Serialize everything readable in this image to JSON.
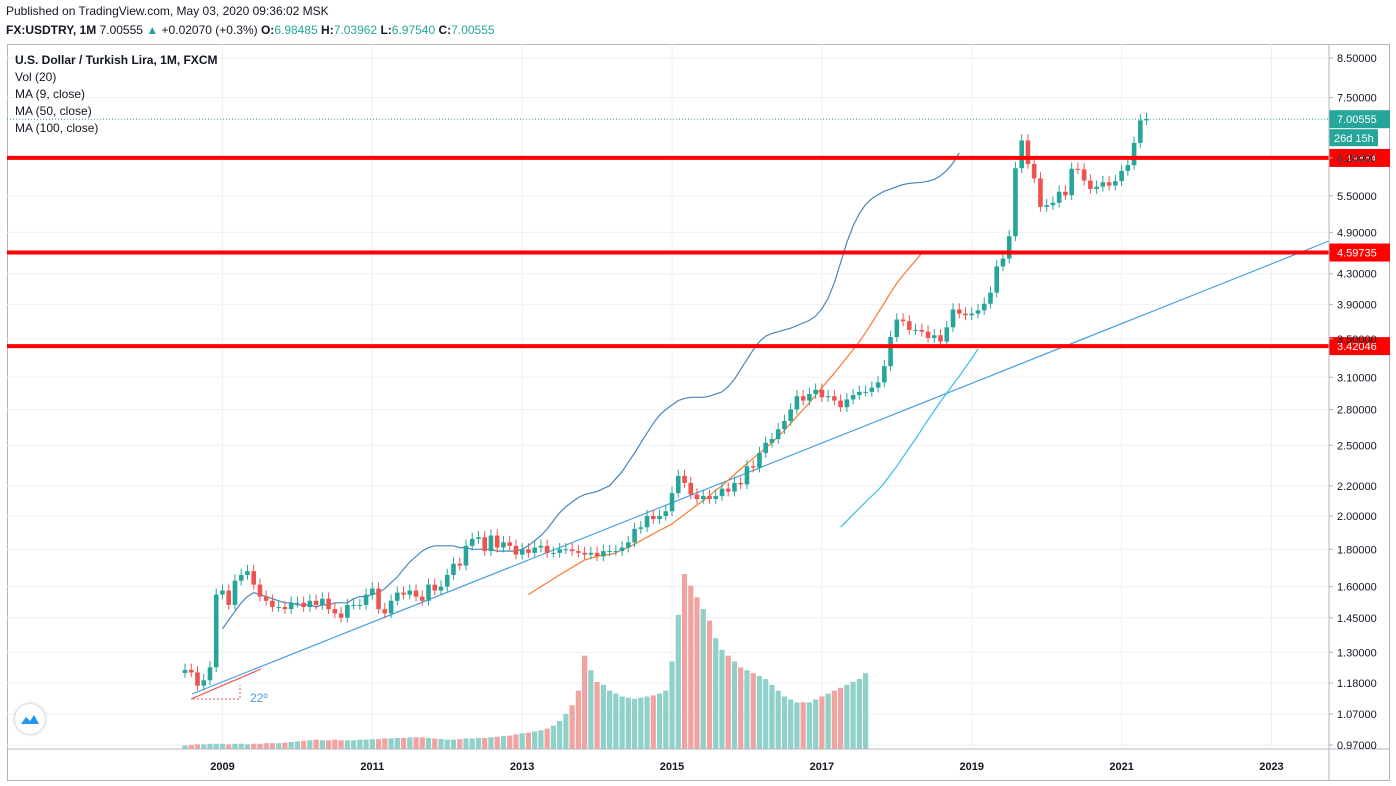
{
  "header": {
    "published": "Published on TradingView.com, May 03, 2020 09:36:02 MSK",
    "symbol": "FX:USDTRY, 1M",
    "last": "7.00555",
    "change": "+0.02070 (+0.3%)",
    "o_label": "O:",
    "o_value": "6.98485",
    "h_label": "H:",
    "h_value": "7.03962",
    "l_label": "L:",
    "l_value": "6.97540",
    "c_label": "C:",
    "c_value": "7.00555"
  },
  "legend": {
    "title": "U.S. Dollar / Turkish Lira, 1M, FXCM",
    "vol": "Vol (20)",
    "ma9": "MA (9, close)",
    "ma50": "MA (50, close)",
    "ma100": "MA (100, close)"
  },
  "annotation": "22º",
  "colors": {
    "up": "#26a69a",
    "down": "#ef5350",
    "vol_up": "#8fd0c9",
    "vol_down": "#f0a3a1",
    "ma9": "#4a86b7",
    "ma50": "#f57c2e",
    "ma100": "#35bde3",
    "trend": "#4a9fe0",
    "level": "#ff0000",
    "grid": "#eef0f3"
  },
  "chart_data": {
    "type": "candlestick",
    "x_ticks": [
      "2009",
      "2011",
      "2013",
      "2015",
      "2017",
      "2019",
      "2021",
      "2023"
    ],
    "y_ticks": [
      "0.97000",
      "1.07000",
      "1.18000",
      "1.30000",
      "1.45000",
      "1.60000",
      "1.80000",
      "2.00000",
      "2.20000",
      "2.50000",
      "2.80000",
      "3.10000",
      "3.50000",
      "3.90000",
      "4.30000",
      "4.90000",
      "5.50000",
      "6.20000",
      "7.50000",
      "8.50000"
    ],
    "y_scale": "log",
    "price_labels": [
      {
        "value": "7.00555",
        "sub": "26d 15h",
        "kind": "last"
      },
      {
        "value": "6.19864",
        "kind": "level"
      },
      {
        "value": "4.59735",
        "kind": "level"
      },
      {
        "value": "3.42046",
        "kind": "level"
      }
    ],
    "closes": [
      1.23,
      1.22,
      1.17,
      1.19,
      1.24,
      1.56,
      1.58,
      1.51,
      1.63,
      1.66,
      1.68,
      1.61,
      1.55,
      1.53,
      1.5,
      1.5,
      1.49,
      1.52,
      1.52,
      1.5,
      1.53,
      1.51,
      1.54,
      1.49,
      1.47,
      1.45,
      1.51,
      1.51,
      1.51,
      1.56,
      1.59,
      1.49,
      1.47,
      1.53,
      1.57,
      1.56,
      1.58,
      1.55,
      1.53,
      1.61,
      1.58,
      1.6,
      1.66,
      1.72,
      1.71,
      1.82,
      1.86,
      1.87,
      1.79,
      1.88,
      1.81,
      1.84,
      1.82,
      1.77,
      1.8,
      1.78,
      1.81,
      1.82,
      1.78,
      1.78,
      1.8,
      1.8,
      1.79,
      1.78,
      1.77,
      1.78,
      1.76,
      1.79,
      1.79,
      1.79,
      1.81,
      1.84,
      1.92,
      1.93,
      2.0,
      1.98,
      2.0,
      2.03,
      2.15,
      2.27,
      2.22,
      2.14,
      2.11,
      2.13,
      2.11,
      2.13,
      2.18,
      2.16,
      2.22,
      2.21,
      2.34,
      2.33,
      2.44,
      2.52,
      2.55,
      2.63,
      2.7,
      2.8,
      2.92,
      2.88,
      2.94,
      2.98,
      2.91,
      2.92,
      2.88,
      2.82,
      2.89,
      2.93,
      2.96,
      2.96,
      3.0,
      3.05,
      3.21,
      3.52,
      3.72,
      3.7,
      3.6,
      3.6,
      3.58,
      3.51,
      3.54,
      3.47,
      3.63,
      3.84,
      3.79,
      3.77,
      3.79,
      3.83,
      3.91,
      4.05,
      4.4,
      4.51,
      4.84,
      6.0,
      6.55,
      6.08,
      5.81,
      5.31,
      5.34,
      5.38,
      5.57,
      5.51,
      5.99,
      5.98,
      5.77,
      5.62,
      5.66,
      5.74,
      5.68,
      5.76,
      5.95,
      6.06,
      6.5,
      6.98,
      7.01
    ],
    "ma9": [
      1.4,
      1.44,
      1.48,
      1.52,
      1.55,
      1.57,
      1.56,
      1.55,
      1.54,
      1.53,
      1.52,
      1.52,
      1.51,
      1.51,
      1.51,
      1.5,
      1.51,
      1.51,
      1.52,
      1.52,
      1.52,
      1.54,
      1.55,
      1.55,
      1.56,
      1.57,
      1.59,
      1.62,
      1.65,
      1.69,
      1.73,
      1.76,
      1.79,
      1.81,
      1.82,
      1.82,
      1.82,
      1.82,
      1.81,
      1.81,
      1.8,
      1.8,
      1.8,
      1.8,
      1.79,
      1.79,
      1.79,
      1.79,
      1.8,
      1.82,
      1.85,
      1.88,
      1.92,
      1.97,
      2.02,
      2.06,
      2.09,
      2.12,
      2.14,
      2.15,
      2.16,
      2.18,
      2.2,
      2.25,
      2.3,
      2.37,
      2.44,
      2.52,
      2.6,
      2.68,
      2.75,
      2.8,
      2.84,
      2.88,
      2.9,
      2.91,
      2.91,
      2.91,
      2.92,
      2.94,
      2.96,
      3.01,
      3.08,
      3.18,
      3.28,
      3.38,
      3.47,
      3.53,
      3.56,
      3.58,
      3.6,
      3.62,
      3.65,
      3.68,
      3.71,
      3.76,
      3.85,
      3.98,
      4.18,
      4.45,
      4.75,
      5.0,
      5.2,
      5.35,
      5.45,
      5.52,
      5.58,
      5.62,
      5.66,
      5.7,
      5.72,
      5.73,
      5.74,
      5.76,
      5.79,
      5.86,
      5.96,
      6.1,
      6.3
    ],
    "ma9_start": 6,
    "ma50": [
      1.56,
      1.58,
      1.6,
      1.62,
      1.64,
      1.66,
      1.68,
      1.7,
      1.72,
      1.74,
      1.75,
      1.76,
      1.77,
      1.77,
      1.78,
      1.8,
      1.81,
      1.83,
      1.85,
      1.87,
      1.89,
      1.91,
      1.93,
      1.95,
      1.98,
      2.01,
      2.04,
      2.07,
      2.1,
      2.13,
      2.17,
      2.2,
      2.24,
      2.28,
      2.32,
      2.36,
      2.4,
      2.44,
      2.48,
      2.52,
      2.57,
      2.62,
      2.68,
      2.74,
      2.8,
      2.86,
      2.93,
      3.0,
      3.07,
      3.14,
      3.22,
      3.3,
      3.38,
      3.47,
      3.57,
      3.68,
      3.8,
      3.92,
      4.05,
      4.17,
      4.28,
      4.38,
      4.48,
      4.59
    ],
    "ma50_start": 55,
    "ma100": [
      1.93,
      1.97,
      2.01,
      2.05,
      2.09,
      2.13,
      2.17,
      2.22,
      2.28,
      2.34,
      2.41,
      2.48,
      2.55,
      2.63,
      2.71,
      2.79,
      2.87,
      2.95,
      3.03,
      3.11,
      3.2,
      3.29,
      3.39
    ],
    "ma100_start": 105,
    "volume": [
      6,
      7,
      8,
      8,
      9,
      9,
      9,
      8,
      9,
      9,
      8,
      9,
      9,
      10,
      10,
      10,
      11,
      12,
      13,
      14,
      15,
      16,
      15,
      15,
      16,
      15,
      15,
      15,
      16,
      16,
      17,
      17,
      18,
      18,
      19,
      19,
      20,
      20,
      20,
      19,
      18,
      17,
      16,
      16,
      17,
      18,
      18,
      19,
      19,
      20,
      21,
      22,
      23,
      25,
      27,
      28,
      30,
      32,
      35,
      40,
      48,
      60,
      75,
      100,
      160,
      135,
      115,
      110,
      100,
      95,
      90,
      88,
      86,
      88,
      90,
      92,
      95,
      100,
      150,
      230,
      300,
      280,
      260,
      240,
      220,
      190,
      170,
      160,
      150,
      140,
      135,
      130,
      125,
      120,
      110,
      100,
      90,
      85,
      80,
      80,
      80,
      85,
      90,
      95,
      100,
      105,
      110,
      115,
      120,
      130
    ],
    "vol_start": 0
  }
}
